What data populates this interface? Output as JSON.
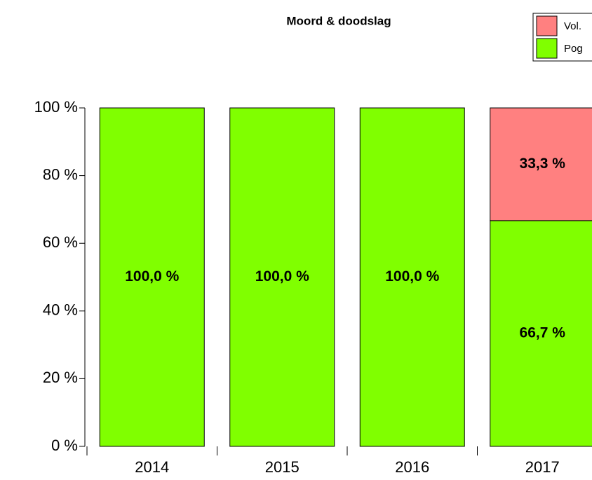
{
  "chart_data": {
    "type": "stacked-bar",
    "title": "Moord & doodslag",
    "categories": [
      "2014",
      "2015",
      "2016",
      "2017"
    ],
    "series": [
      {
        "name": "Vol.",
        "color": "#ff8080",
        "values": [
          0,
          0,
          0,
          33.3
        ],
        "value_labels": [
          null,
          null,
          null,
          "33,3 %"
        ]
      },
      {
        "name": "Pog",
        "color": "#80ff00",
        "values": [
          100,
          100,
          100,
          66.7
        ],
        "value_labels": [
          "100,0 %",
          "100,0 %",
          "100,0 %",
          "66,7 %"
        ]
      }
    ],
    "ylim": [
      0,
      100
    ],
    "yticks": [
      {
        "value": 0,
        "label": "0 %"
      },
      {
        "value": 20,
        "label": "20 %"
      },
      {
        "value": 40,
        "label": "40 %"
      },
      {
        "value": 60,
        "label": "60 %"
      },
      {
        "value": 80,
        "label": "80 %"
      },
      {
        "value": 100,
        "label": "100 %"
      }
    ],
    "legend": "top-right"
  }
}
